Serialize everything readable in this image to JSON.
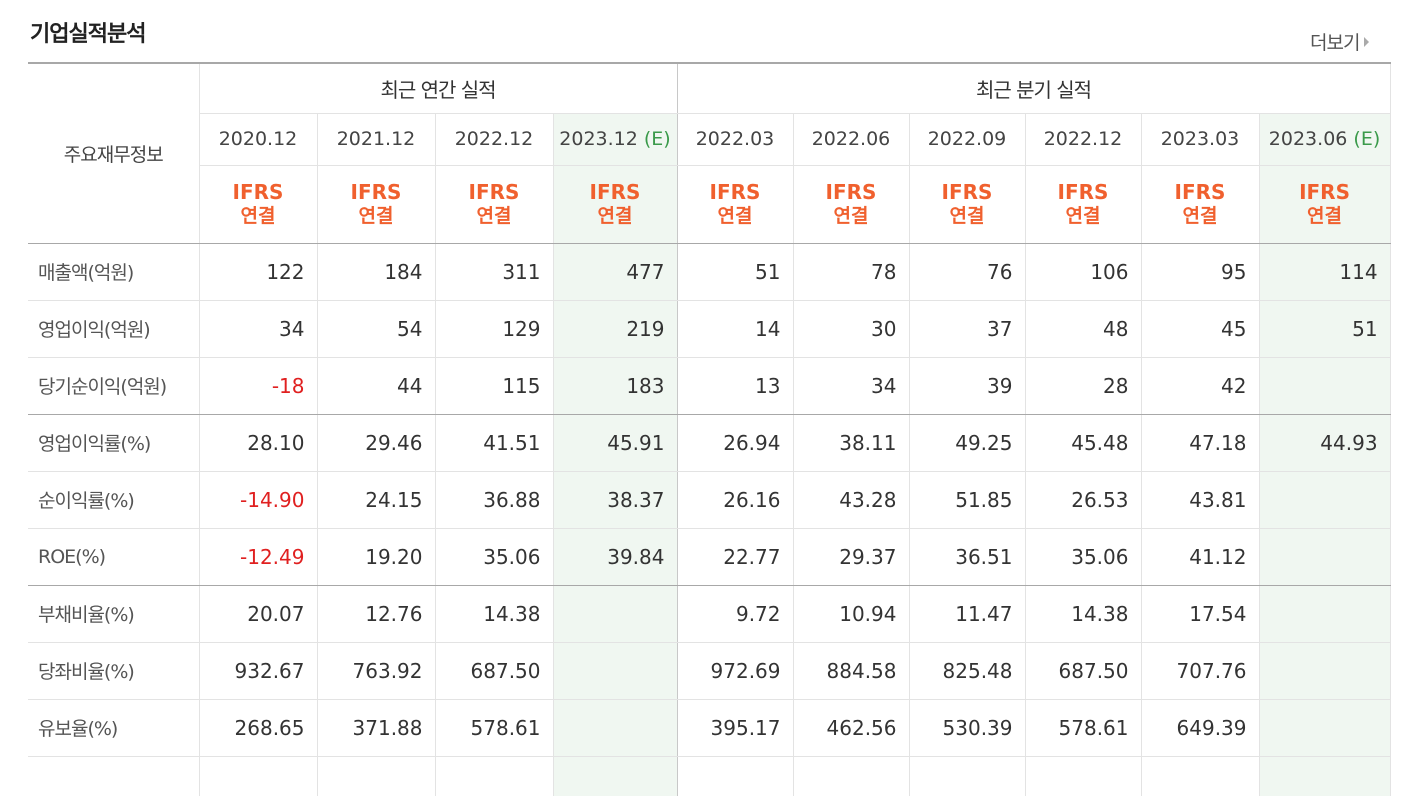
{
  "section_title": "기업실적분석",
  "more_label": "더보기",
  "row_header": "주요재무정보",
  "groups": {
    "annual": "최근 연간 실적",
    "quarterly": "최근 분기 실적"
  },
  "periods": [
    {
      "date": "2020.12",
      "flag": ""
    },
    {
      "date": "2021.12",
      "flag": ""
    },
    {
      "date": "2022.12",
      "flag": ""
    },
    {
      "date": "2023.12",
      "flag": "(E)"
    },
    {
      "date": "2022.03",
      "flag": ""
    },
    {
      "date": "2022.06",
      "flag": ""
    },
    {
      "date": "2022.09",
      "flag": ""
    },
    {
      "date": "2022.12",
      "flag": ""
    },
    {
      "date": "2023.03",
      "flag": ""
    },
    {
      "date": "2023.06",
      "flag": "(E)"
    }
  ],
  "ifrs": {
    "line1": "IFRS",
    "line2": "연결"
  },
  "rows": [
    {
      "label": "매출액(억원)",
      "values": [
        "122",
        "184",
        "311",
        "477",
        "51",
        "78",
        "76",
        "106",
        "95",
        "114"
      ]
    },
    {
      "label": "영업이익(억원)",
      "values": [
        "34",
        "54",
        "129",
        "219",
        "14",
        "30",
        "37",
        "48",
        "45",
        "51"
      ]
    },
    {
      "label": "당기순이익(억원)",
      "values": [
        "-18",
        "44",
        "115",
        "183",
        "13",
        "34",
        "39",
        "28",
        "42",
        ""
      ]
    },
    {
      "label": "영업이익률(%)",
      "values": [
        "28.10",
        "29.46",
        "41.51",
        "45.91",
        "26.94",
        "38.11",
        "49.25",
        "45.48",
        "47.18",
        "44.93"
      ]
    },
    {
      "label": "순이익률(%)",
      "values": [
        "-14.90",
        "24.15",
        "36.88",
        "38.37",
        "26.16",
        "43.28",
        "51.85",
        "26.53",
        "43.81",
        ""
      ]
    },
    {
      "label": "ROE(%)",
      "values": [
        "-12.49",
        "19.20",
        "35.06",
        "39.84",
        "22.77",
        "29.37",
        "36.51",
        "35.06",
        "41.12",
        ""
      ]
    },
    {
      "label": "부채비율(%)",
      "values": [
        "20.07",
        "12.76",
        "14.38",
        "",
        "9.72",
        "10.94",
        "11.47",
        "14.38",
        "17.54",
        ""
      ]
    },
    {
      "label": "당좌비율(%)",
      "values": [
        "932.67",
        "763.92",
        "687.50",
        "",
        "972.69",
        "884.58",
        "825.48",
        "687.50",
        "707.76",
        ""
      ]
    },
    {
      "label": "유보율(%)",
      "values": [
        "268.65",
        "371.88",
        "578.61",
        "",
        "395.17",
        "462.56",
        "530.39",
        "578.61",
        "649.39",
        ""
      ]
    }
  ]
}
